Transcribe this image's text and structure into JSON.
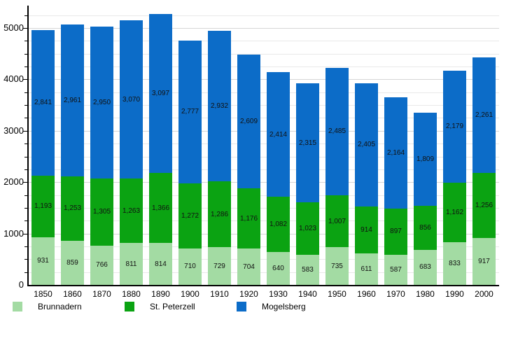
{
  "chart_data": {
    "type": "bar",
    "stacked": true,
    "title": "",
    "xlabel": "",
    "ylabel": "",
    "categories": [
      1850,
      1860,
      1870,
      1880,
      1890,
      1900,
      1910,
      1920,
      1930,
      1940,
      1950,
      1960,
      1970,
      1980,
      1990,
      2000
    ],
    "series": [
      {
        "name": "Brunnadern",
        "color": "#a3dba3",
        "values": [
          931,
          859,
          766,
          811,
          814,
          710,
          729,
          704,
          640,
          583,
          735,
          611,
          587,
          683,
          833,
          917
        ]
      },
      {
        "name": "St. Peterzell",
        "color": "#0ba312",
        "values": [
          1193,
          1253,
          1305,
          1263,
          1366,
          1272,
          1286,
          1176,
          1082,
          1023,
          1007,
          914,
          897,
          856,
          1162,
          1256
        ]
      },
      {
        "name": "Mogelsberg",
        "color": "#0c6cc8",
        "values": [
          2841,
          2961,
          2950,
          3070,
          3097,
          2777,
          2932,
          2609,
          2414,
          2315,
          2485,
          2405,
          2164,
          1809,
          2179,
          2261
        ]
      }
    ],
    "yticks": [
      0,
      1000,
      2000,
      3000,
      4000,
      5000
    ],
    "ylim": [
      0,
      5400
    ],
    "grid_step": 250,
    "grid_max": 5250,
    "grid_on": true,
    "legend_position": "bottom",
    "value_labels": "inside-center, thousands comma separated"
  }
}
